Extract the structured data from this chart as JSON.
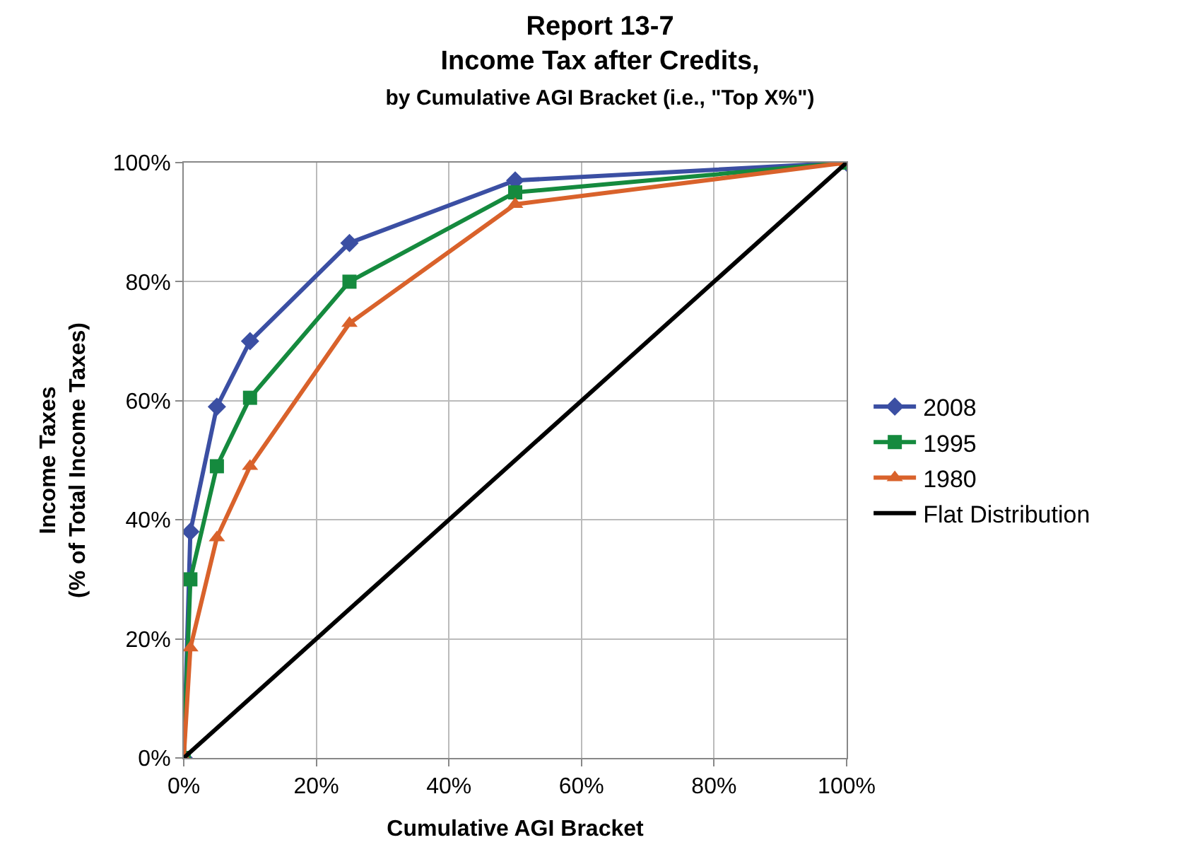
{
  "chart_data": {
    "type": "line",
    "title": "Report 13-7",
    "subtitle": "Income Tax after Credits,\nby Cumulative AGI Bracket (i.e., \"Top X%\")",
    "xlabel": "Cumulative AGI Bracket",
    "ylabel": "Income Taxes\n(% of Total Income Taxes)",
    "x": [
      0,
      1,
      5,
      10,
      25,
      50,
      100
    ],
    "series": [
      {
        "name": "2008",
        "color": "#3b4fa3",
        "marker": "diamond",
        "values": [
          0,
          38,
          59,
          70,
          86.5,
          97,
          100
        ]
      },
      {
        "name": "1995",
        "color": "#158a3e",
        "marker": "square",
        "values": [
          0,
          30,
          49,
          60.5,
          80,
          95,
          100
        ]
      },
      {
        "name": "1980",
        "color": "#d9622b",
        "marker": "triangle",
        "values": [
          0,
          18.5,
          37,
          49,
          73,
          93,
          100
        ]
      },
      {
        "name": "Flat Distribution",
        "color": "#000000",
        "marker": "none",
        "x": [
          0,
          100
        ],
        "values": [
          0,
          100
        ]
      }
    ],
    "xlim": [
      0,
      100
    ],
    "ylim": [
      0,
      100
    ],
    "xticks": [
      {
        "value": 0,
        "label": "0%"
      },
      {
        "value": 20,
        "label": "20%"
      },
      {
        "value": 40,
        "label": "40%"
      },
      {
        "value": 60,
        "label": "60%"
      },
      {
        "value": 80,
        "label": "80%"
      },
      {
        "value": 100,
        "label": "100%"
      }
    ],
    "yticks": [
      {
        "value": 0,
        "label": "0%"
      },
      {
        "value": 20,
        "label": "20%"
      },
      {
        "value": 40,
        "label": "40%"
      },
      {
        "value": 60,
        "label": "60%"
      },
      {
        "value": 80,
        "label": "80%"
      },
      {
        "value": 100,
        "label": "100%"
      }
    ],
    "grid": true,
    "legend": "right",
    "line_style": "solid"
  }
}
